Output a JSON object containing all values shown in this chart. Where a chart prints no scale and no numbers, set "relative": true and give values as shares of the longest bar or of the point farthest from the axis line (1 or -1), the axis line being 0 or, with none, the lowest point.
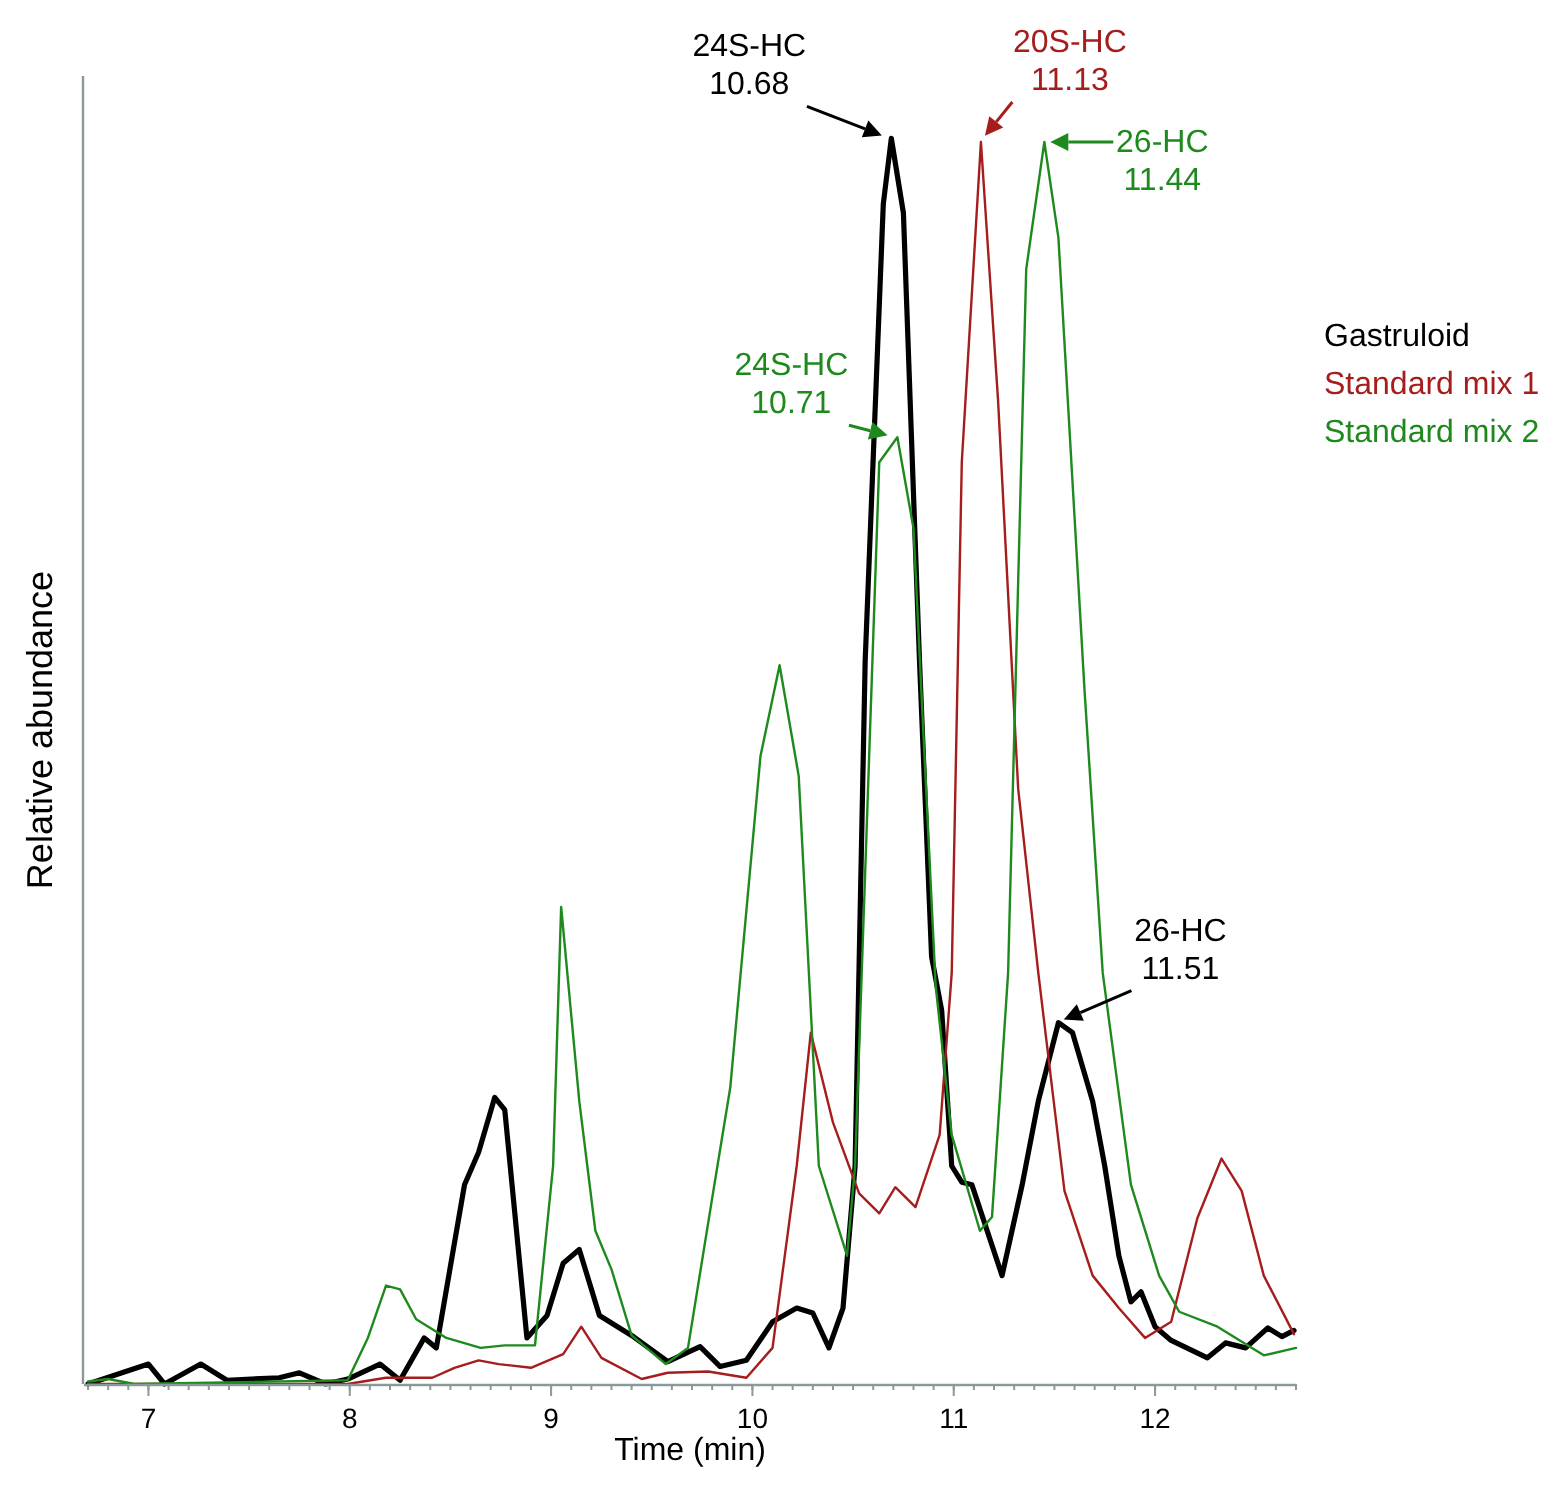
{
  "chart_data": {
    "type": "line",
    "relative": true,
    "xlabel": "Time (min)",
    "ylabel": "Relative abundance",
    "xlim": [
      6.68,
      12.7
    ],
    "xticks": [
      7,
      8,
      9,
      10,
      11,
      12
    ],
    "legend": "right",
    "grid": false,
    "marker": "none",
    "line_style": "solid",
    "series": [
      {
        "name": "Gastruloid",
        "color": "#000000",
        "x": [
          6.7,
          7.0,
          7.08,
          7.26,
          7.39,
          7.65,
          7.75,
          7.88,
          7.99,
          8.15,
          8.25,
          8.37,
          8.43,
          8.57,
          8.64,
          8.72,
          8.77,
          8.88,
          8.98,
          9.06,
          9.14,
          9.24,
          9.4,
          9.58,
          9.74,
          9.84,
          9.97,
          10.1,
          10.22,
          10.3,
          10.38,
          10.45,
          10.51,
          10.56,
          10.65,
          10.69,
          10.75,
          10.83,
          10.89,
          10.94,
          10.99,
          11.04,
          11.09,
          11.24,
          11.34,
          11.42,
          11.52,
          11.59,
          11.69,
          11.75,
          11.82,
          11.88,
          11.93,
          12.0,
          12.08,
          12.26,
          12.35,
          12.45,
          12.56,
          12.63,
          12.69
        ],
        "values": [
          0,
          0.016,
          0,
          0.016,
          0.003,
          0.005,
          0.009,
          0,
          0.004,
          0.016,
          0.003,
          0.037,
          0.029,
          0.16,
          0.186,
          0.23,
          0.22,
          0.037,
          0.055,
          0.097,
          0.108,
          0.055,
          0.039,
          0.018,
          0.03,
          0.014,
          0.019,
          0.05,
          0.061,
          0.057,
          0.029,
          0.061,
          0.175,
          0.58,
          0.947,
          1,
          0.94,
          0.58,
          0.343,
          0.3,
          0.175,
          0.162,
          0.16,
          0.087,
          0.16,
          0.227,
          0.29,
          0.282,
          0.227,
          0.175,
          0.103,
          0.066,
          0.074,
          0.046,
          0.035,
          0.021,
          0.033,
          0.029,
          0.045,
          0.038,
          0.043
        ]
      },
      {
        "name": "Standard mix 1",
        "color": "#a51d1d",
        "x": [
          6.7,
          7.99,
          8.18,
          8.41,
          8.52,
          8.64,
          8.74,
          8.9,
          9.06,
          9.15,
          9.25,
          9.45,
          9.58,
          9.78,
          9.97,
          10.1,
          10.22,
          10.29,
          10.4,
          10.53,
          10.63,
          10.71,
          10.81,
          10.93,
          10.99,
          11.04,
          11.135,
          11.22,
          11.32,
          11.42,
          11.55,
          11.69,
          11.82,
          11.95,
          12.08,
          12.21,
          12.33,
          12.43,
          12.54,
          12.69
        ],
        "values": [
          0,
          0,
          0.005,
          0.005,
          0.013,
          0.019,
          0.016,
          0.013,
          0.024,
          0.046,
          0.021,
          0.004,
          0.009,
          0.01,
          0.005,
          0.029,
          0.175,
          0.282,
          0.21,
          0.153,
          0.137,
          0.158,
          0.142,
          0.2,
          0.33,
          0.74,
          0.997,
          0.79,
          0.478,
          0.33,
          0.155,
          0.087,
          0.061,
          0.037,
          0.05,
          0.133,
          0.181,
          0.155,
          0.087,
          0.04
        ]
      },
      {
        "name": "Standard mix 2",
        "color": "#1e8a1e",
        "x": [
          6.7,
          6.8,
          6.93,
          7.99,
          8.09,
          8.18,
          8.25,
          8.33,
          8.48,
          8.65,
          8.77,
          8.92,
          9.01,
          9.05,
          9.14,
          9.22,
          9.3,
          9.4,
          9.57,
          9.68,
          9.8,
          9.89,
          10.04,
          10.135,
          10.23,
          10.33,
          10.47,
          10.51,
          10.63,
          10.72,
          10.8,
          10.91,
          10.99,
          11.13,
          11.19,
          11.27,
          11.36,
          11.45,
          11.52,
          11.65,
          11.74,
          11.88,
          12.02,
          12.12,
          12.31,
          12.54,
          12.7
        ],
        "values": [
          0.002,
          0.004,
          0,
          0.003,
          0.037,
          0.079,
          0.076,
          0.052,
          0.037,
          0.029,
          0.031,
          0.031,
          0.175,
          0.383,
          0.227,
          0.123,
          0.092,
          0.039,
          0.016,
          0.029,
          0.149,
          0.238,
          0.504,
          0.577,
          0.488,
          0.175,
          0.103,
          0.175,
          0.74,
          0.76,
          0.687,
          0.32,
          0.2,
          0.123,
          0.134,
          0.33,
          0.895,
          0.997,
          0.92,
          0.556,
          0.33,
          0.16,
          0.087,
          0.058,
          0.046,
          0.023,
          0.029
        ]
      }
    ],
    "annotations": [
      {
        "text": "24S-HC\n10.68",
        "x": 10.68,
        "y": 1
      },
      {
        "text": "20S-HC\n11.13",
        "x": 11.13,
        "y": 0.997
      },
      {
        "text": "26-HC\n11.44",
        "x": 11.44,
        "y": 0.997
      },
      {
        "text": "24S-HC\n10.71",
        "x": 10.71,
        "y": 0.76
      },
      {
        "text": "26-HC\n11.51",
        "x": 11.51,
        "y": 0.29
      }
    ]
  }
}
